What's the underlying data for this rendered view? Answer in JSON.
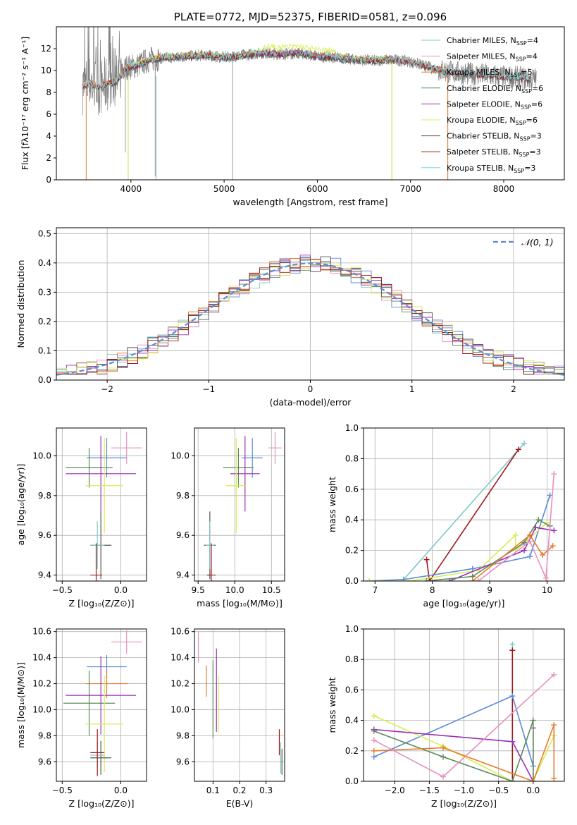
{
  "colors": {
    "Chabrier MILES": "#7ec8c8",
    "Salpeter MILES": "#e88fbf",
    "Kroupa MILES": "#e87a2a",
    "Chabrier ELODIE": "#5a8a5a",
    "Salpeter ELODIE": "#9a2fb5",
    "Kroupa ELODIE": "#d8ec52",
    "Chabrier STELIB": "#555555",
    "Salpeter STELIB": "#a01818",
    "Kroupa STELIB": "#7ad8e0",
    "blue": "#5b8bd8",
    "spectrum": "#7f7f7f",
    "normal": "#5b8bd8"
  },
  "chart_data": [
    {
      "id": "spectrum",
      "type": "line",
      "title": "PLATE=0772, MJD=52375, FIBERID=0581, z=0.096",
      "xlabel": "wavelength [Angstrom, rest frame]",
      "ylabel": "Flux [fλ10⁻¹⁷ erg cm⁻² s⁻¹ A⁻¹]",
      "xlim": [
        3200,
        8650
      ],
      "ylim": [
        0,
        14
      ],
      "xticks": [
        4000,
        5000,
        6000,
        7000,
        8000
      ],
      "yticks": [
        0,
        2,
        4,
        6,
        8,
        10,
        12
      ],
      "grid": false,
      "legend_position": "upper-right",
      "continuum": {
        "x": [
          3480,
          3560,
          3650,
          3750,
          3850,
          3950,
          4050,
          4200,
          4400,
          4600,
          4800,
          5000,
          5200,
          5400,
          5600,
          5800,
          6000,
          6200,
          6400,
          6600,
          6800,
          7000,
          7200,
          7400,
          7600,
          7800,
          8000,
          8200,
          8350
        ],
        "y": [
          8.5,
          8.9,
          8.4,
          8.8,
          9.0,
          10.3,
          10.4,
          11.0,
          11.2,
          11.3,
          11.4,
          11.2,
          11.4,
          11.6,
          11.5,
          11.6,
          11.3,
          11.2,
          11.0,
          10.9,
          11.0,
          10.8,
          10.3,
          9.9,
          9.7,
          9.6,
          9.4,
          9.3,
          9.2
        ]
      },
      "series": [
        {
          "name": "Chabrier MILES, N",
          "n_ssp": "4"
        },
        {
          "name": "Salpeter MILES, N",
          "n_ssp": "4"
        },
        {
          "name": "Kroupa MILES, N",
          "n_ssp": "5"
        },
        {
          "name": "Chabrier ELODIE, N",
          "n_ssp": "6"
        },
        {
          "name": "Salpeter ELODIE, N",
          "n_ssp": "6"
        },
        {
          "name": "Kroupa ELODIE, N",
          "n_ssp": "6"
        },
        {
          "name": "Chabrier STELIB, N",
          "n_ssp": "3"
        },
        {
          "name": "Salpeter STELIB, N",
          "n_ssp": "3"
        },
        {
          "name": "Kroupa STELIB, N",
          "n_ssp": "3"
        }
      ]
    },
    {
      "id": "residuals",
      "type": "line",
      "xlabel": "(data-model)/error",
      "ylabel": "Normed distribution",
      "xlim": [
        -2.5,
        2.5
      ],
      "ylim": [
        0,
        0.52
      ],
      "xticks": [
        -2,
        -1,
        0,
        1,
        2
      ],
      "yticks": [
        0.0,
        0.1,
        0.2,
        0.3,
        0.4,
        0.5
      ],
      "grid": true,
      "bin_width": 0.1,
      "legend": "𝒩(0, 1)",
      "legend_position": "upper-right"
    },
    {
      "id": "age-vs-Z",
      "type": "scatter",
      "xlabel": "Z [log₁₀(Z/Z⊙)]",
      "ylabel": "age  [log₁₀(age/yr)]",
      "xlim": [
        -0.55,
        0.22
      ],
      "ylim": [
        9.37,
        10.14
      ],
      "xticks": [
        -0.5,
        0.0
      ],
      "yticks": [
        9.4,
        9.6,
        9.8,
        10.0
      ],
      "grid": true,
      "points": [
        {
          "x": 0.05,
          "y": 10.04,
          "xerr": 0.13,
          "yerr": 0.08,
          "color": "Salpeter MILES"
        },
        {
          "x": -0.12,
          "y": 9.99,
          "xerr": 0.17,
          "yerr": 0.1,
          "color": "blue"
        },
        {
          "x": -0.27,
          "y": 9.94,
          "xerr": 0.2,
          "yerr": 0.1,
          "color": "Chabrier ELODIE"
        },
        {
          "x": -0.17,
          "y": 9.91,
          "xerr": 0.3,
          "yerr": 0.19,
          "color": "Salpeter ELODIE"
        },
        {
          "x": -0.14,
          "y": 9.85,
          "xerr": 0.16,
          "yerr": 0.24,
          "color": "Kroupa ELODIE"
        },
        {
          "x": -0.17,
          "y": 9.55,
          "xerr": 0.09,
          "yerr": 0.17,
          "color": "Chabrier STELIB"
        },
        {
          "x": -0.2,
          "y": 9.55,
          "xerr": 0.06,
          "yerr": 0.12,
          "color": "Chabrier MILES"
        },
        {
          "x": -0.21,
          "y": 9.4,
          "xerr": 0.05,
          "yerr": 0.16,
          "color": "Salpeter STELIB"
        }
      ]
    },
    {
      "id": "age-vs-mass",
      "type": "scatter",
      "xlabel": "mass [log₁₀(M/M⊙)]",
      "ylabel": "",
      "xlim": [
        9.45,
        10.68
      ],
      "ylim": [
        9.37,
        10.14
      ],
      "xticks": [
        9.5,
        10.0,
        10.5
      ],
      "yticks": [
        9.4,
        9.6,
        9.8,
        10.0
      ],
      "grid": true,
      "points": [
        {
          "x": 10.55,
          "y": 10.04,
          "xerr": 0.09,
          "yerr": 0.08,
          "color": "Salpeter MILES"
        },
        {
          "x": 10.24,
          "y": 9.99,
          "xerr": 0.14,
          "yerr": 0.1,
          "color": "blue"
        },
        {
          "x": 10.05,
          "y": 9.94,
          "xerr": 0.21,
          "yerr": 0.1,
          "color": "Chabrier ELODIE"
        },
        {
          "x": 10.14,
          "y": 9.91,
          "xerr": 0.2,
          "yerr": 0.19,
          "color": "Salpeter ELODIE"
        },
        {
          "x": 10.02,
          "y": 9.85,
          "xerr": 0.14,
          "yerr": 0.24,
          "color": "Kroupa ELODIE"
        },
        {
          "x": 9.66,
          "y": 9.55,
          "xerr": 0.08,
          "yerr": 0.17,
          "color": "Chabrier STELIB"
        },
        {
          "x": 9.66,
          "y": 9.55,
          "xerr": 0.06,
          "yerr": 0.12,
          "color": "Chabrier MILES"
        },
        {
          "x": 9.68,
          "y": 9.4,
          "xerr": 0.06,
          "yerr": 0.16,
          "color": "Salpeter STELIB"
        }
      ]
    },
    {
      "id": "weight-vs-age",
      "type": "line",
      "xlabel": "age  [log₁₀(age/yr)]",
      "ylabel": "mass weight",
      "xlim": [
        6.8,
        10.3
      ],
      "ylim": [
        0,
        1.0
      ],
      "xticks": [
        7,
        8,
        9,
        10
      ],
      "yticks": [
        0.0,
        0.2,
        0.4,
        0.6,
        0.8,
        1.0
      ],
      "grid": true,
      "series": [
        {
          "color": "Chabrier MILES",
          "x": [
            7.5,
            9.6
          ],
          "y": [
            0.01,
            0.9
          ]
        },
        {
          "color": "Salpeter STELIB",
          "x": [
            7.9,
            7.95,
            9.5
          ],
          "y": [
            0.14,
            0.0,
            0.86
          ]
        },
        {
          "color": "blue",
          "x": [
            6.9,
            7.5,
            8.7,
            9.7,
            10.05
          ],
          "y": [
            0.0,
            0.01,
            0.08,
            0.16,
            0.56
          ]
        },
        {
          "color": "Kroupa ELODIE",
          "x": [
            6.9,
            7.6,
            8.8,
            9.45,
            9.45,
            10.0
          ],
          "y": [
            0.0,
            0.0,
            0.07,
            0.3,
            0.2,
            0.38
          ]
        },
        {
          "color": "Salpeter ELODIE",
          "x": [
            8.3,
            9.6,
            9.8,
            10.12
          ],
          "y": [
            0.0,
            0.2,
            0.35,
            0.33
          ]
        },
        {
          "color": "Chabrier ELODIE",
          "x": [
            7.9,
            8.7,
            9.6,
            9.85,
            10.05
          ],
          "y": [
            0.0,
            0.03,
            0.25,
            0.4,
            0.36
          ]
        },
        {
          "color": "Kroupa MILES",
          "x": [
            8.7,
            9.7,
            9.92,
            10.1
          ],
          "y": [
            0.0,
            0.3,
            0.17,
            0.23
          ]
        },
        {
          "color": "Salpeter MILES",
          "x": [
            8.8,
            9.7,
            9.98,
            10.12
          ],
          "y": [
            0.0,
            0.26,
            0.02,
            0.7
          ]
        }
      ]
    },
    {
      "id": "mass-vs-Z",
      "type": "scatter",
      "xlabel": "Z [log₁₀(Z/Z⊙)]",
      "ylabel": "mass [log₁₀(M/M⊙)]",
      "xlim": [
        -0.55,
        0.22
      ],
      "ylim": [
        9.45,
        10.62
      ],
      "xticks": [
        -0.5,
        0.0
      ],
      "yticks": [
        9.6,
        9.8,
        10.0,
        10.2,
        10.4,
        10.6
      ],
      "grid": true,
      "points": [
        {
          "x": 0.05,
          "y": 10.52,
          "xerr": 0.13,
          "yerr": 0.09,
          "color": "Salpeter MILES"
        },
        {
          "x": -0.12,
          "y": 10.33,
          "xerr": 0.17,
          "yerr": 0.09,
          "color": "blue"
        },
        {
          "x": -0.12,
          "y": 10.2,
          "xerr": 0.18,
          "yerr": 0.11,
          "color": "Kroupa MILES"
        },
        {
          "x": -0.27,
          "y": 10.05,
          "xerr": 0.22,
          "yerr": 0.25,
          "color": "Chabrier ELODIE"
        },
        {
          "x": -0.17,
          "y": 10.11,
          "xerr": 0.3,
          "yerr": 0.3,
          "color": "Salpeter ELODIE"
        },
        {
          "x": -0.14,
          "y": 9.89,
          "xerr": 0.16,
          "yerr": 0.37,
          "color": "Kroupa ELODIE"
        },
        {
          "x": -0.17,
          "y": 9.63,
          "xerr": 0.09,
          "yerr": 0.13,
          "color": "Chabrier STELIB"
        },
        {
          "x": -0.2,
          "y": 9.65,
          "xerr": 0.06,
          "yerr": 0.1,
          "color": "Chabrier MILES"
        },
        {
          "x": -0.2,
          "y": 9.67,
          "xerr": 0.06,
          "yerr": 0.18,
          "color": "Salpeter STELIB"
        }
      ]
    },
    {
      "id": "ebv",
      "type": "scatter",
      "xlabel": "E(B-V)",
      "ylabel": "",
      "xlim": [
        0.03,
        0.37
      ],
      "ylim": [
        9.45,
        10.62
      ],
      "xticks": [
        0.1,
        0.2,
        0.3
      ],
      "yticks": [
        9.6,
        9.8,
        10.0,
        10.2,
        10.4,
        10.6
      ],
      "grid": true,
      "points": [
        {
          "x": 0.045,
          "y": 10.48,
          "yerr": 0.12,
          "color": "Salpeter MILES"
        },
        {
          "x": 0.075,
          "y": 10.22,
          "yerr": 0.12,
          "color": "Kroupa MILES"
        },
        {
          "x": 0.1,
          "y": 10.08,
          "yerr": 0.3,
          "color": "Chabrier ELODIE"
        },
        {
          "x": 0.113,
          "y": 10.15,
          "yerr": 0.32,
          "color": "Salpeter ELODIE"
        },
        {
          "x": 0.12,
          "y": 10.04,
          "yerr": 0.22,
          "color": "Kroupa ELODIE"
        },
        {
          "x": 0.35,
          "y": 9.75,
          "yerr": 0.1,
          "color": "Salpeter STELIB"
        },
        {
          "x": 0.355,
          "y": 9.63,
          "yerr": 0.12,
          "color": "Chabrier MILES"
        },
        {
          "x": 0.36,
          "y": 9.6,
          "yerr": 0.1,
          "color": "Chabrier STELIB"
        }
      ]
    },
    {
      "id": "weight-vs-Z",
      "type": "line",
      "xlabel": "Z [log₁₀(Z/Z⊙)]",
      "ylabel": "mass weight",
      "xlim": [
        -2.45,
        0.45
      ],
      "ylim": [
        0,
        1.0
      ],
      "xticks": [
        -2.0,
        -1.5,
        -1.0,
        -0.5,
        0.0
      ],
      "yticks": [
        0.0,
        0.2,
        0.4,
        0.6,
        0.8,
        1.0
      ],
      "grid": true,
      "series": [
        {
          "color": "Chabrier MILES",
          "x": [
            -0.3,
            -0.3
          ],
          "y": [
            0.9,
            0.0
          ]
        },
        {
          "color": "Salpeter STELIB",
          "x": [
            -0.3,
            -0.3
          ],
          "y": [
            0.86,
            0.0
          ]
        },
        {
          "color": "blue",
          "x": [
            -2.3,
            -0.3,
            0.0,
            0.0
          ],
          "y": [
            0.16,
            0.56,
            0.1,
            0.0
          ]
        },
        {
          "color": "Kroupa ELODIE",
          "x": [
            -2.3,
            -1.3,
            -0.3,
            0.0,
            0.3,
            0.3
          ],
          "y": [
            0.43,
            0.23,
            0.0,
            0.0,
            0.3,
            0.3
          ]
        },
        {
          "color": "Salpeter ELODIE",
          "x": [
            -2.3,
            -0.3,
            0.0,
            0.0
          ],
          "y": [
            0.34,
            0.26,
            0.0,
            0.35
          ]
        },
        {
          "color": "Chabrier ELODIE",
          "x": [
            -2.3,
            -1.3,
            -0.3,
            0.0,
            0.0
          ],
          "y": [
            0.33,
            0.16,
            0.0,
            0.4,
            0.0
          ]
        },
        {
          "color": "Kroupa MILES",
          "x": [
            -2.3,
            -1.3,
            0.0,
            0.3,
            0.3
          ],
          "y": [
            0.2,
            0.22,
            0.0,
            0.37,
            0.02
          ]
        },
        {
          "color": "Salpeter MILES",
          "x": [
            -2.3,
            -1.3,
            0.3
          ],
          "y": [
            0.27,
            0.03,
            0.7
          ]
        }
      ]
    }
  ]
}
